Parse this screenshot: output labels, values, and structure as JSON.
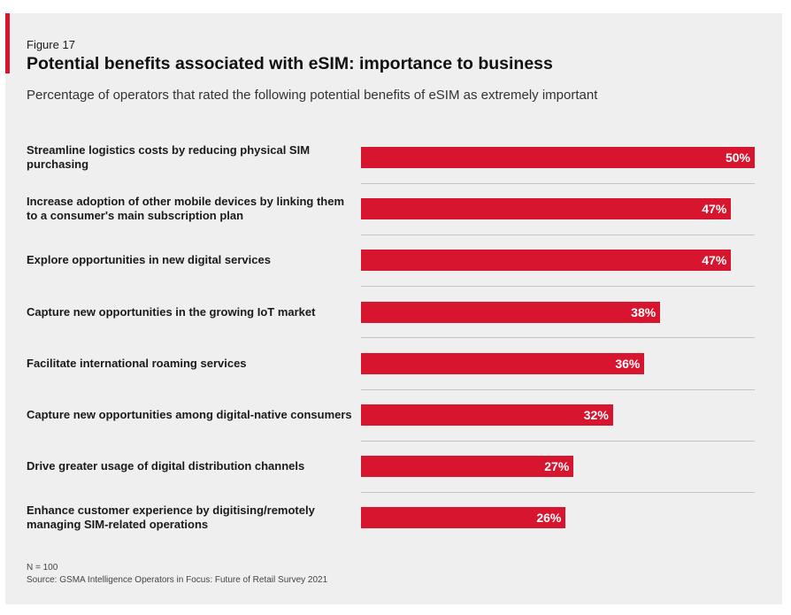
{
  "figure_label": "Figure 17",
  "title": "Potential benefits associated with eSIM: importance to business",
  "subtitle": "Percentage of operators that rated the following potential benefits of eSIM as extremely important",
  "colors": {
    "bar": "#d7152f",
    "accent": "#d7152f",
    "panel": "#efefef"
  },
  "chart_data": {
    "type": "bar",
    "orientation": "horizontal",
    "categories": [
      "Streamline logistics costs by reducing physical SIM purchasing",
      "Increase adoption of other mobile devices by linking them to a consumer's main subscription plan",
      "Explore opportunities in new digital services",
      "Capture new opportunities in the growing IoT market",
      "Facilitate international roaming services",
      "Capture new opportunities among digital-native consumers",
      "Drive greater usage of digital distribution channels",
      "Enhance customer experience by digitising/remotely managing SIM-related operations"
    ],
    "values": [
      50,
      47,
      47,
      38,
      36,
      32,
      27,
      26
    ],
    "value_labels": [
      "50%",
      "47%",
      "47%",
      "38%",
      "36%",
      "32%",
      "27%",
      "26%"
    ],
    "unit": "%",
    "xlim": [
      0,
      50
    ],
    "grid": false
  },
  "footnote": {
    "n": "N = 100",
    "source": "Source: GSMA Intelligence Operators in Focus: Future of Retail Survey 2021"
  }
}
